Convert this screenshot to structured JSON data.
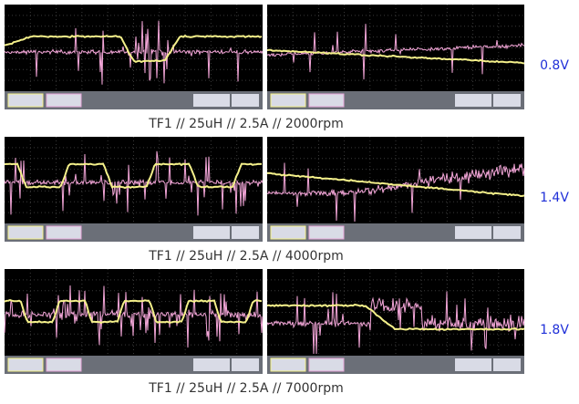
{
  "rows": [
    {
      "caption": "TF1 // 25uH // 2.5A // 2000rpm",
      "voltage": "0.8V"
    },
    {
      "caption": "TF1 // 25uH // 2.5A // 4000rpm",
      "voltage": "1.4V"
    },
    {
      "caption": "TF1 // 25uH // 2.5A // 7000rpm",
      "voltage": "1.8V"
    }
  ]
}
